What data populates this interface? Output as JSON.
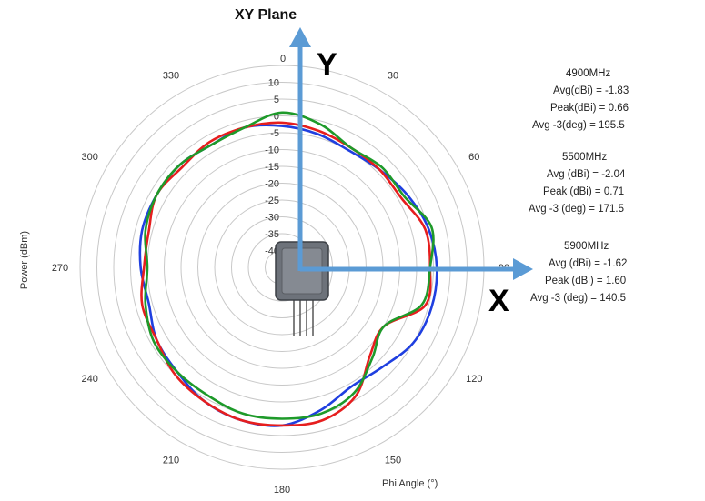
{
  "chart_data": {
    "type": "polar-line",
    "title": "XY Plane",
    "radial_axis_label": "Power (dBm)",
    "angle_axis_label": "Phi Angle (°)",
    "radial_ticks": [
      10,
      5,
      0,
      -5,
      -10,
      -15,
      -20,
      -25,
      -30,
      -35,
      -40
    ],
    "radial_range": [
      -45,
      15
    ],
    "angle_ticks": [
      "0",
      "30",
      "60",
      "90",
      "120",
      "150",
      "180",
      "210",
      "240",
      "270",
      "300",
      "330"
    ],
    "angles_deg": [
      0,
      15,
      30,
      45,
      60,
      75,
      90,
      105,
      120,
      135,
      150,
      165,
      180,
      195,
      210,
      225,
      240,
      255,
      270,
      285,
      300,
      315,
      330,
      345
    ],
    "series": [
      {
        "color": "#1f3fe0",
        "values": [
          -3,
          -4,
          -5,
          -4,
          -2,
          0,
          1,
          1,
          0,
          -3,
          -4,
          -1,
          2,
          2,
          1,
          -1,
          -2,
          -4,
          -3,
          -2,
          -2,
          -2,
          -3,
          -2
        ]
      },
      {
        "color": "#e61e1e",
        "values": [
          -2,
          -3,
          -4,
          -4,
          -4,
          -1,
          -1,
          -1,
          -10,
          -8,
          -1,
          2,
          2,
          2,
          1,
          0,
          -2,
          -2,
          -4,
          -4,
          -2,
          -3,
          -2,
          -2
        ]
      },
      {
        "color": "#1e9a2a",
        "values": [
          1,
          -1,
          -4,
          -3,
          -3,
          1,
          -1,
          -2,
          -10,
          -7,
          -2,
          0,
          0,
          0,
          -1,
          -1,
          -1,
          -3,
          -5,
          -3,
          -2,
          -2,
          -3,
          -2
        ]
      }
    ],
    "annotations": [
      {
        "freq": "4900MHz",
        "lines": [
          [
            "Avg(dBi) =",
            "-1.83"
          ],
          [
            "Peak(dBi) =",
            "0.66"
          ],
          [
            "Avg -3(deg) =",
            "195.5"
          ]
        ]
      },
      {
        "freq": "5500MHz",
        "lines": [
          [
            "Avg (dBi) =",
            "-2.04"
          ],
          [
            "Peak (dBi) =",
            "0.71"
          ],
          [
            "Avg -3 (deg) =",
            "171.5"
          ]
        ]
      },
      {
        "freq": "5900MHz",
        "lines": [
          [
            "Avg (dBi) =",
            "-1.62"
          ],
          [
            "Peak (dBi) =",
            "1.60"
          ],
          [
            "Avg -3 (deg) =",
            "140.5"
          ]
        ]
      }
    ],
    "axis_letters": {
      "y": "Y",
      "x": "X"
    }
  }
}
